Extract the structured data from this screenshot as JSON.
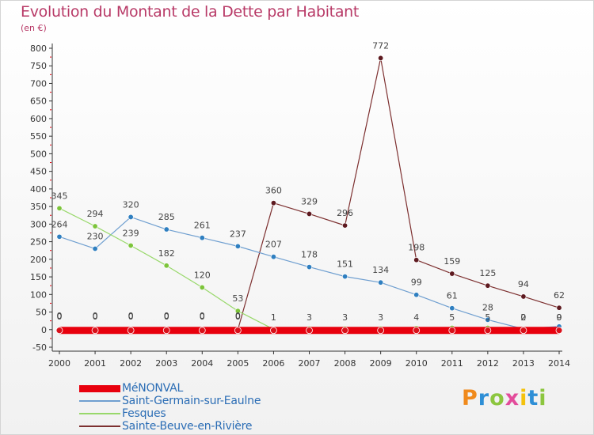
{
  "header": {
    "title": "Evolution du Montant de la Dette par Habitant",
    "unit": "(en €)"
  },
  "logo": {
    "text": "Proxiti",
    "colors": [
      "#f08a1c",
      "#2e8fd6",
      "#8cc63f",
      "#e34c9b",
      "#f4c20d",
      "#2e8fd6",
      "#8cc63f"
    ]
  },
  "chart_data": {
    "type": "line",
    "title": "Evolution du Montant de la Dette par Habitant",
    "subtitle": "(en €)",
    "xlabel": "",
    "ylabel": "",
    "ylim": [
      -50,
      800
    ],
    "yticks": [
      -50,
      0,
      50,
      100,
      150,
      200,
      250,
      300,
      350,
      400,
      450,
      500,
      550,
      600,
      650,
      700,
      750,
      800
    ],
    "grid": false,
    "legend_position": "bottom-left",
    "categories": [
      "2000",
      "2001",
      "2002",
      "2003",
      "2004",
      "2005",
      "2006",
      "2007",
      "2008",
      "2009",
      "2010",
      "2011",
      "2012",
      "2013",
      "2014"
    ],
    "series": [
      {
        "name": "MéNONVAL",
        "color": "#e8000d",
        "marker": "#d9101a",
        "values": [
          0,
          0,
          0,
          0,
          0,
          0,
          0,
          0,
          0,
          0,
          0,
          0,
          0,
          0,
          0
        ],
        "labels": [
          "0",
          "0",
          "0",
          "0",
          "0",
          "0",
          "",
          "",
          "",
          "",
          "",
          "",
          "",
          "",
          ""
        ]
      },
      {
        "name": "Saint-Germain-sur-Eaulne",
        "color": "#6f9fd0",
        "marker": "#2f7fc0",
        "values": [
          264,
          230,
          320,
          285,
          261,
          237,
          207,
          178,
          151,
          134,
          99,
          61,
          28,
          2,
          9
        ],
        "labels": [
          "264",
          "230",
          "320",
          "285",
          "261",
          "237",
          "207",
          "178",
          "151",
          "134",
          "99",
          "61",
          "28",
          "2",
          "9"
        ]
      },
      {
        "name": "Fesques",
        "color": "#98d86a",
        "marker": "#7cc43a",
        "values": [
          345,
          294,
          239,
          182,
          120,
          53,
          1,
          3,
          3,
          3,
          4,
          5,
          5,
          0,
          0
        ],
        "labels": [
          "345",
          "294",
          "239",
          "182",
          "120",
          "53",
          "1",
          "3",
          "3",
          "3",
          "4",
          "5",
          "5",
          "0",
          "0"
        ]
      },
      {
        "name": "Sainte-Beuve-en-Rivière",
        "color": "#7d3030",
        "marker": "#5e1a20",
        "values": [
          0,
          0,
          0,
          0,
          0,
          0,
          360,
          329,
          296,
          772,
          198,
          159,
          125,
          94,
          62
        ],
        "labels": [
          "0",
          "0",
          "0",
          "0",
          "0",
          "0",
          "360",
          "329",
          "296",
          "772",
          "198",
          "159",
          "125",
          "94",
          "62"
        ]
      }
    ]
  }
}
